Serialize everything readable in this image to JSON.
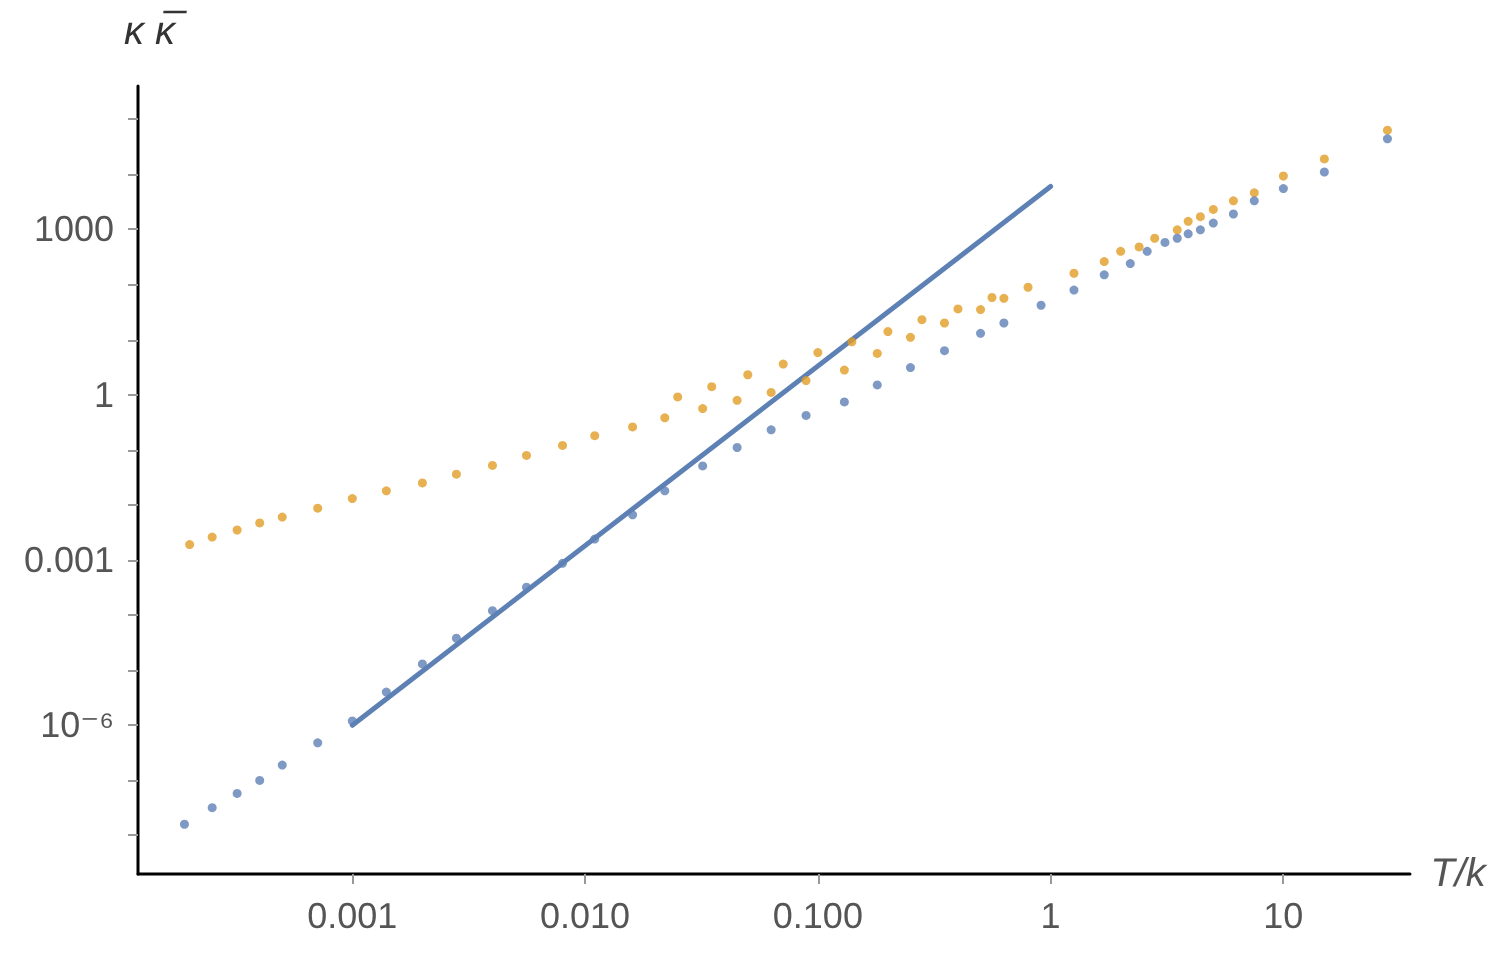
{
  "chart_data": {
    "type": "scatter",
    "xlabel": "T/k",
    "ylabel": "κ κ̅",
    "log": "xy",
    "grid": false,
    "marker": "circle",
    "xlim": [
      0.00012,
      35
    ],
    "ylim": [
      2e-09,
      400000
    ],
    "xticks": [
      0.001,
      {
        "value": 0.01,
        "label": "0.010"
      },
      {
        "value": 0.1,
        "label": "0.100"
      },
      1,
      10
    ],
    "yticks": [
      {
        "value": 1e-08,
        "label": null
      },
      {
        "value": 1e-07,
        "label": null
      },
      {
        "value": 1e-06,
        "label": "10⁻⁶"
      },
      {
        "value": 1e-05,
        "label": null
      },
      {
        "value": 0.0001,
        "label": null
      },
      0.001,
      {
        "value": 0.01,
        "label": null
      },
      {
        "value": 0.1,
        "label": null
      },
      1,
      {
        "value": 10,
        "label": null
      },
      {
        "value": 100,
        "label": null
      },
      1000,
      {
        "value": 10000,
        "label": null
      },
      {
        "value": 100000,
        "label": null
      }
    ],
    "series": [
      {
        "color": "#e19c24",
        "x": [
          0.0002,
          0.00025,
          0.00032,
          0.0004,
          0.0005,
          0.00071,
          0.001,
          0.0014,
          0.002,
          0.0028,
          0.004,
          0.0056,
          0.008,
          0.011,
          0.016,
          0.022,
          0.032,
          0.045,
          0.063,
          0.089,
          0.13,
          0.18,
          0.25,
          0.35,
          0.5,
          0.63,
          0.8,
          1.26,
          1.7,
          2.0,
          2.4,
          2.8,
          3.5,
          3.9,
          4.4,
          5.0,
          6.1,
          7.5,
          10,
          15,
          28,
          0.025,
          0.035,
          0.05,
          0.071,
          0.1,
          0.14,
          0.2,
          0.28,
          0.4,
          0.56
        ],
        "values": [
          0.0019,
          0.0026,
          0.0035,
          0.0047,
          0.006,
          0.0087,
          0.013,
          0.018,
          0.025,
          0.036,
          0.052,
          0.079,
          0.12,
          0.18,
          0.26,
          0.38,
          0.56,
          0.79,
          1.1,
          1.8,
          2.8,
          5.6,
          11,
          20,
          35,
          56,
          89,
          160,
          260,
          400,
          480,
          690,
          980,
          1400,
          1700,
          2300,
          3300,
          4600,
          9300,
          19000,
          63000,
          0.91,
          1.4,
          2.3,
          3.6,
          5.8,
          9.1,
          14,
          23,
          36,
          58
        ]
      },
      {
        "color": "#5e81b5",
        "x": [
          0.00019,
          0.00025,
          0.00032,
          0.0004,
          0.0005,
          0.00071,
          0.001,
          0.0014,
          0.002,
          0.0028,
          0.004,
          0.0056,
          0.008,
          0.011,
          0.016,
          0.022,
          0.032,
          0.045,
          0.063,
          0.089,
          0.13,
          0.18,
          0.25,
          0.35,
          0.5,
          0.63,
          0.91,
          1.26,
          1.7,
          2.2,
          2.6,
          3.1,
          3.5,
          3.9,
          4.4,
          5.0,
          6.1,
          7.5,
          10,
          15,
          28
        ],
        "values": [
          1.6e-08,
          3.2e-08,
          5.8e-08,
          1e-07,
          1.9e-07,
          4.8e-07,
          1.2e-06,
          4e-06,
          1.3e-05,
          3.8e-05,
          0.00012,
          0.00032,
          0.00087,
          0.0024,
          0.0066,
          0.018,
          0.051,
          0.11,
          0.23,
          0.42,
          0.74,
          1.5,
          3.1,
          6.3,
          13,
          20,
          42,
          79,
          150,
          240,
          400,
          580,
          690,
          830,
          980,
          1300,
          1900,
          3300,
          5500,
          11000,
          44000
        ]
      },
      {
        "type": "line",
        "color": "#5e81b5",
        "marker": "none",
        "line_style": "solid",
        "x": [
          0.001,
          1
        ],
        "values": [
          1e-06,
          6000
        ]
      }
    ]
  }
}
